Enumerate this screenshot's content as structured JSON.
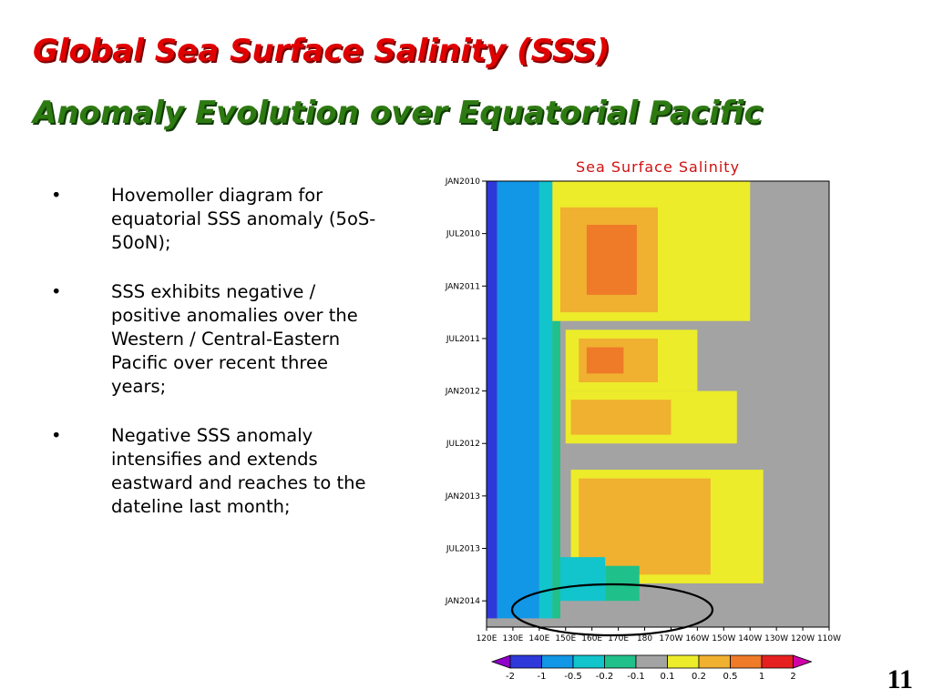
{
  "slide": {
    "title_line1": "Global Sea Surface Salinity (SSS)",
    "title_line2": "Anomaly Evolution over Equatorial Pacific",
    "page_number": "11",
    "bullet_symbol": "•",
    "bullets": [
      "Hovemoller diagram for equatorial SSS anomaly (5oS-50oN);",
      "SSS exhibits negative / positive anomalies over the Western / Central-Eastern Pacific over recent three years;",
      "Negative SSS anomaly intensifies and extends eastward and reaches to the dateline last month;"
    ]
  },
  "chart_data": {
    "type": "heatmap",
    "title": "Sea Surface Salinity",
    "x_tick_labels": [
      "120E",
      "130E",
      "140E",
      "150E",
      "160E",
      "170E",
      "180",
      "170W",
      "160W",
      "150W",
      "140W",
      "130W",
      "120W",
      "110W"
    ],
    "y_tick_labels": [
      "JAN2010",
      "JUL2010",
      "JAN2011",
      "JUL2011",
      "JAN2012",
      "JUL2012",
      "JAN2013",
      "JUL2013",
      "JAN2014"
    ],
    "xlim": [
      "120E",
      "110W"
    ],
    "ylim": [
      "JAN2010",
      "MAR2014"
    ],
    "y_direction": "time increases downward",
    "colorbar": {
      "labels": [
        "-2",
        "-1",
        "-0.5",
        "-0.2",
        "-0.1",
        "0.1",
        "0.2",
        "0.5",
        "1",
        "2"
      ],
      "colors": [
        "#9000c8",
        "#2f38d8",
        "#1296e6",
        "#12c4cc",
        "#20c08a",
        "#a3a3a3",
        "#ecec2a",
        "#f0b030",
        "#ef7a28",
        "#e62020",
        "#d000a8"
      ]
    },
    "annotation": "ellipse highlighting negative anomaly reaching the dateline near JAN2014",
    "regions": [
      {
        "lon_east": [
          120,
          124
        ],
        "time": [
          0,
          50
        ],
        "value": -1
      },
      {
        "lon_east": [
          124,
          140
        ],
        "time": [
          0,
          50
        ],
        "value": -0.5
      },
      {
        "lon_east": [
          140,
          145
        ],
        "time": [
          0,
          50
        ],
        "value": -0.2
      },
      {
        "lon_east": [
          145,
          148
        ],
        "time": [
          0,
          50
        ],
        "value": -0.1
      },
      {
        "lon_east": [
          148,
          220
        ],
        "time": [
          0,
          50
        ],
        "value": 0
      },
      {
        "lon_east": [
          145,
          220
        ],
        "time": [
          0,
          16
        ],
        "value": 0.1
      },
      {
        "lon_east": [
          148,
          185
        ],
        "time": [
          3,
          15
        ],
        "value": 0.2
      },
      {
        "lon_east": [
          158,
          177
        ],
        "time": [
          5,
          13
        ],
        "value": 0.5
      },
      {
        "lon_east": [
          150,
          200
        ],
        "time": [
          17,
          24
        ],
        "value": 0.1
      },
      {
        "lon_east": [
          155,
          185
        ],
        "time": [
          18,
          23
        ],
        "value": 0.2
      },
      {
        "lon_east": [
          158,
          172
        ],
        "time": [
          19,
          22
        ],
        "value": 0.5
      },
      {
        "lon_east": [
          150,
          215
        ],
        "time": [
          24,
          30
        ],
        "value": 0.1
      },
      {
        "lon_east": [
          152,
          190
        ],
        "time": [
          25,
          29
        ],
        "value": 0.2
      },
      {
        "lon_east": [
          152,
          225
        ],
        "time": [
          33,
          46
        ],
        "value": 0.1
      },
      {
        "lon_east": [
          155,
          205
        ],
        "time": [
          34,
          45
        ],
        "value": 0.2
      },
      {
        "lon_east": [
          148,
          165
        ],
        "time": [
          43,
          48
        ],
        "value": -0.2
      },
      {
        "lon_east": [
          165,
          178
        ],
        "time": [
          44,
          48
        ],
        "value": -0.1
      }
    ]
  }
}
